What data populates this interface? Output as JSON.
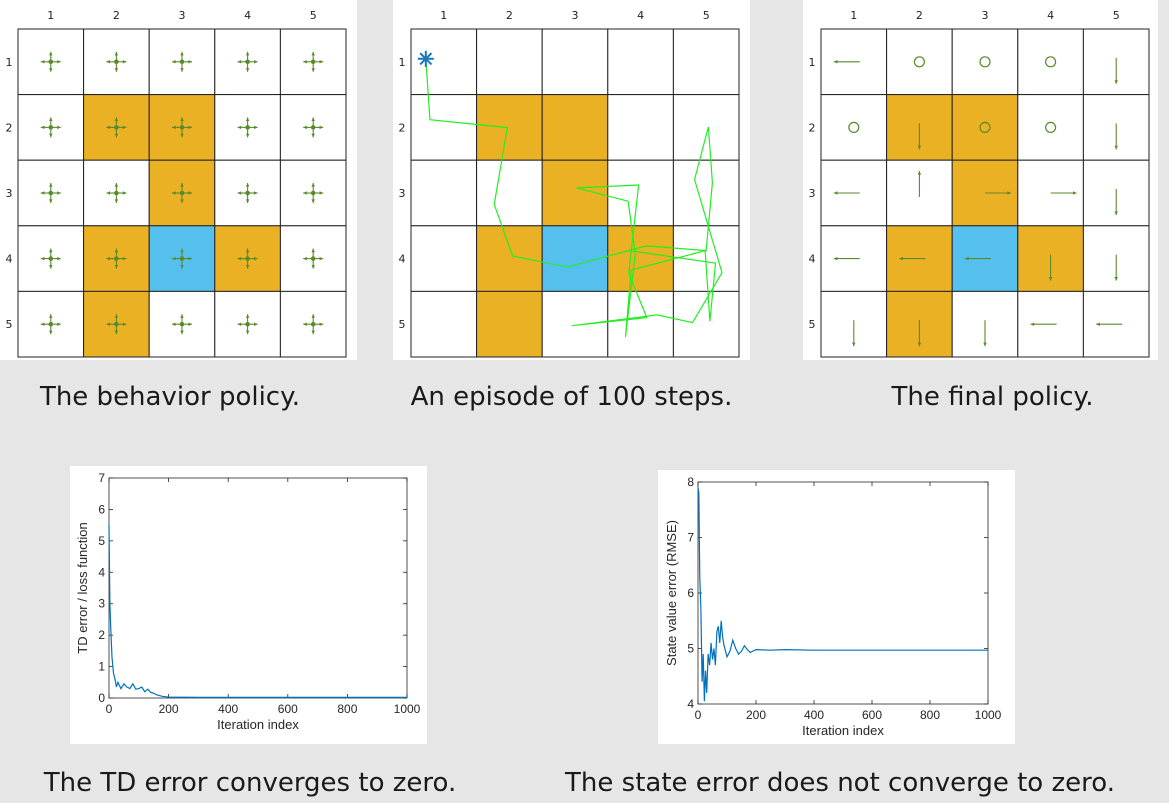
{
  "grid": {
    "col_labels": [
      "1",
      "2",
      "3",
      "4",
      "5"
    ],
    "row_labels": [
      "1",
      "2",
      "3",
      "4",
      "5"
    ],
    "forbidden_cells": [
      [
        2,
        2
      ],
      [
        2,
        3
      ],
      [
        3,
        3
      ],
      [
        4,
        2
      ],
      [
        4,
        4
      ],
      [
        5,
        2
      ]
    ],
    "target_cell": [
      4,
      3
    ],
    "colors": {
      "forbidden": "#eab125",
      "target": "#55bfee",
      "grid_line": "#222222",
      "arrow": "#5a8a2a",
      "path": "#22ee22",
      "start": "#1a77b8"
    }
  },
  "captions": {
    "behavior": "The behavior policy.",
    "episode": "An episode of 100 steps.",
    "final": "The final policy.",
    "td": "The TD error converges to zero.",
    "state": "The state error does not converge to zero."
  },
  "final_policy": [
    [
      "left",
      "stay",
      "stay",
      "stay",
      "down"
    ],
    [
      "stay",
      "down",
      "stay",
      "stay",
      "down"
    ],
    [
      "left",
      "up",
      "right",
      "right",
      "down"
    ],
    [
      "left",
      "left",
      "left",
      "down",
      "down"
    ],
    [
      "down",
      "down",
      "down",
      "left",
      "left"
    ]
  ],
  "episode_path": {
    "start": [
      1,
      1
    ],
    "cells": [
      [
        1,
        1
      ],
      [
        2,
        1
      ],
      [
        2,
        2
      ],
      [
        3,
        2
      ],
      [
        4,
        2
      ],
      [
        4,
        3
      ],
      [
        4,
        4
      ],
      [
        4,
        5
      ],
      [
        3,
        5
      ],
      [
        2,
        5
      ],
      [
        3,
        5
      ],
      [
        4,
        5
      ],
      [
        5,
        5
      ],
      [
        5,
        4
      ],
      [
        5,
        3
      ],
      [
        5,
        4
      ],
      [
        4,
        4
      ],
      [
        3,
        4
      ],
      [
        3,
        3
      ],
      [
        3,
        4
      ],
      [
        4,
        4
      ],
      [
        5,
        4
      ],
      [
        4,
        4
      ],
      [
        4,
        5
      ],
      [
        5,
        5
      ],
      [
        4,
        5
      ],
      [
        4,
        4
      ]
    ]
  },
  "chart_data": [
    {
      "type": "line",
      "xlabel": "Iteration index",
      "ylabel": "TD error / loss function",
      "xlim": [
        0,
        1000
      ],
      "ylim": [
        0,
        7
      ],
      "xticks": [
        "0",
        "200",
        "400",
        "600",
        "800",
        "1000"
      ],
      "yticks": [
        "0",
        "1",
        "2",
        "3",
        "4",
        "5",
        "6",
        "7"
      ],
      "series": [
        {
          "color": "#0072bd",
          "x": [
            0,
            3,
            6,
            10,
            15,
            20,
            25,
            30,
            40,
            50,
            60,
            70,
            80,
            90,
            100,
            110,
            120,
            130,
            140,
            150,
            160,
            180,
            200,
            300,
            400,
            500,
            600,
            700,
            800,
            900,
            1000
          ],
          "y": [
            5.5,
            3.0,
            2.2,
            1.3,
            0.8,
            0.6,
            0.35,
            0.5,
            0.3,
            0.45,
            0.35,
            0.3,
            0.45,
            0.28,
            0.3,
            0.35,
            0.2,
            0.28,
            0.18,
            0.15,
            0.1,
            0.05,
            0.03,
            0.02,
            0.02,
            0.02,
            0.02,
            0.02,
            0.02,
            0.02,
            0.02
          ]
        }
      ]
    },
    {
      "type": "line",
      "xlabel": "Iteration index",
      "ylabel": "State value error (RMSE)",
      "xlim": [
        0,
        1000
      ],
      "ylim": [
        4,
        8
      ],
      "xticks": [
        "0",
        "200",
        "400",
        "600",
        "800",
        "1000"
      ],
      "yticks": [
        "4",
        "5",
        "6",
        "7",
        "8"
      ],
      "series": [
        {
          "color": "#0072bd",
          "x": [
            0,
            3,
            6,
            10,
            14,
            18,
            22,
            26,
            30,
            35,
            40,
            45,
            50,
            55,
            60,
            65,
            70,
            75,
            80,
            85,
            90,
            100,
            110,
            120,
            130,
            140,
            150,
            160,
            170,
            180,
            200,
            250,
            300,
            400,
            500,
            600,
            700,
            800,
            900,
            1000
          ],
          "y": [
            7.9,
            7.8,
            6.3,
            5.7,
            4.4,
            4.9,
            4.05,
            4.6,
            4.2,
            4.9,
            4.7,
            5.1,
            4.8,
            5.0,
            4.7,
            5.3,
            5.4,
            5.1,
            5.5,
            5.2,
            5.05,
            4.85,
            4.95,
            5.15,
            5.0,
            4.9,
            4.95,
            5.05,
            4.98,
            4.93,
            4.98,
            4.97,
            4.98,
            4.97,
            4.97,
            4.97,
            4.97,
            4.97,
            4.97,
            4.97
          ]
        }
      ]
    }
  ]
}
